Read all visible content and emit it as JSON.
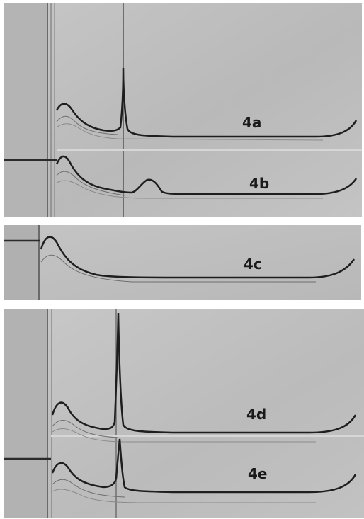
{
  "figure": {
    "background": "#ffffff",
    "panels": [
      {
        "id": "top",
        "traces": [
          {
            "label": "4a"
          },
          {
            "label": "4b"
          }
        ]
      },
      {
        "id": "middle",
        "traces": [
          {
            "label": "4c"
          }
        ]
      },
      {
        "id": "bottom",
        "traces": [
          {
            "label": "4d"
          },
          {
            "label": "4e"
          }
        ]
      }
    ]
  }
}
